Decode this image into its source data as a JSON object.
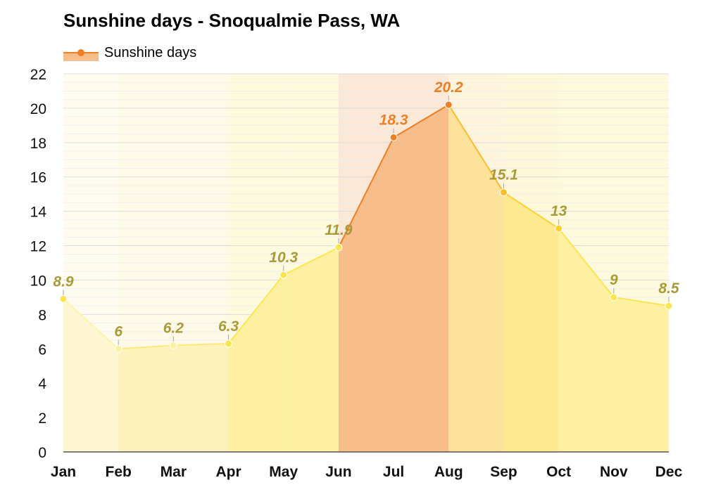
{
  "chart_data": {
    "type": "area",
    "title": "Sunshine days - Snoqualmie Pass, WA",
    "categories": [
      "Jan",
      "Feb",
      "Mar",
      "Apr",
      "May",
      "Jun",
      "Jul",
      "Aug",
      "Sep",
      "Oct",
      "Nov",
      "Dec"
    ],
    "series": [
      {
        "name": "Sunshine days",
        "values": [
          8.9,
          6,
          6.2,
          6.3,
          10.3,
          11.9,
          18.3,
          20.2,
          15.1,
          13,
          9,
          8.5
        ]
      }
    ],
    "data_labels": [
      "8.9",
      "6",
      "6.2",
      "6.3",
      "10.3",
      "11.9",
      "18.3",
      "20.2",
      "15.1",
      "13",
      "9",
      "8.5"
    ],
    "ylim": [
      0,
      22
    ],
    "yticks": [
      "0",
      "2",
      "4",
      "6",
      "8",
      "10",
      "12",
      "14",
      "16",
      "18",
      "20",
      "22"
    ],
    "grid": true,
    "legend_position": "top-left",
    "colors": {
      "band_fills": [
        "#fef6d2",
        "#fdf2b9",
        "#fdf2b9",
        "#fdf1a1",
        "#fdf1a1",
        "#f7bd8b",
        "#f7bd8b",
        "#fde29b",
        "#fde98f",
        "#fdf1a1",
        "#fdf1a1",
        "#fdf1a1"
      ],
      "segment_strokes": [
        "#fef3a8",
        "#fde97c",
        "#fde97c",
        "#fde54f",
        "#fde54f",
        "#ee7f22",
        "#ee7f22",
        "#fbbd2a",
        "#fdd12f",
        "#fde54f",
        "#fde54f"
      ],
      "point_colors": [
        "#fde54f",
        "#fdf1a1",
        "#fdf1a1",
        "#fde54f",
        "#fde54f",
        "#fde54f",
        "#ee7f22",
        "#ee7f22",
        "#fbbd2a",
        "#fdd12f",
        "#fde54f",
        "#fde54f"
      ],
      "label_colors": [
        "#a99a3a",
        "#a99a3a",
        "#a99a3a",
        "#a99a3a",
        "#a99a3a",
        "#a99a3a",
        "#ee7f22",
        "#ee7f22",
        "#a99a3a",
        "#a99a3a",
        "#a99a3a",
        "#a99a3a"
      ],
      "gridline": "#e6e6e6",
      "axis": "#555555"
    }
  }
}
